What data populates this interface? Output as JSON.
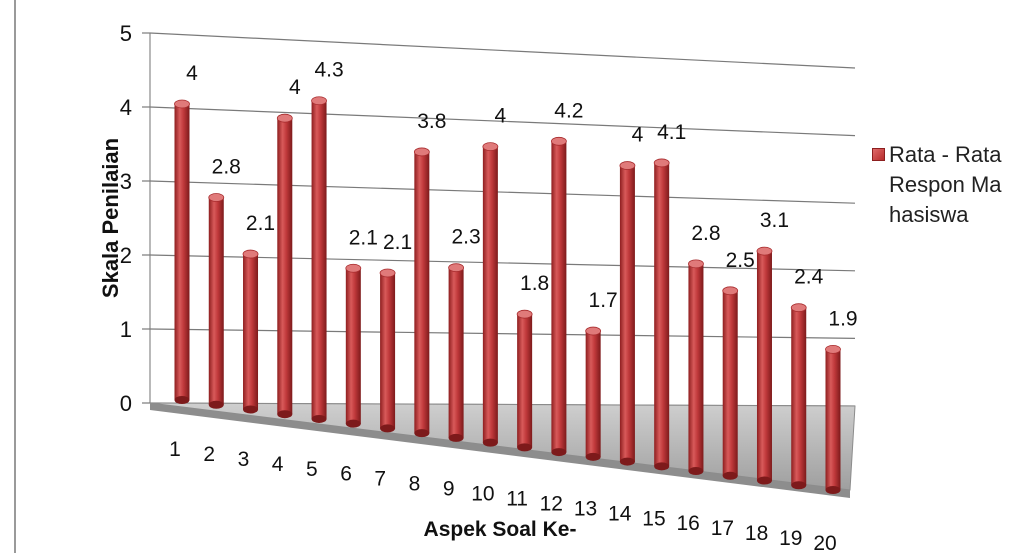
{
  "chart_data": {
    "type": "bar",
    "ylabel": "Skala Penilaian",
    "xlabel": "Aspek Soal Ke-",
    "ylim": [
      0,
      5
    ],
    "yticks": [
      0,
      1,
      2,
      3,
      4,
      5
    ],
    "ytick_labels": [
      "0",
      "1",
      "2",
      "3",
      "4",
      "5"
    ],
    "categories": [
      "1",
      "2",
      "3",
      "4",
      "5",
      "6",
      "7",
      "8",
      "9",
      "10",
      "11",
      "12",
      "13",
      "14",
      "15",
      "16",
      "17",
      "18",
      "19",
      "20"
    ],
    "series": [
      {
        "name": "Rata - Rata Respon Mahasiswa",
        "color": "#c0393b",
        "values": [
          4,
          2.8,
          2.1,
          4,
          4.3,
          2.1,
          2.1,
          3.8,
          2.3,
          4,
          1.8,
          4.2,
          1.7,
          4,
          4.1,
          2.8,
          2.5,
          3.1,
          2.4,
          1.9
        ],
        "data_labels": [
          "4",
          "2.8",
          "2.1",
          "4",
          "4.3",
          "2.1",
          "2.1",
          "3.8",
          "2.3",
          "4",
          "1.8",
          "4.2",
          "1.7",
          "4",
          "4.1",
          "2.8",
          "2.5",
          "3.1",
          "2.4",
          "1.9"
        ]
      }
    ],
    "grid": true,
    "legend_position": "right",
    "style": "3d-cylinder"
  }
}
